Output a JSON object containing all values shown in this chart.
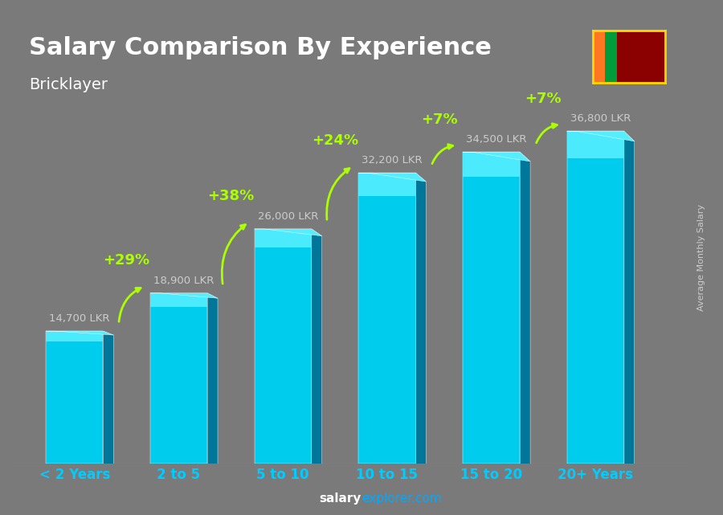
{
  "title": "Salary Comparison By Experience",
  "subtitle": "Bricklayer",
  "categories": [
    "< 2 Years",
    "2 to 5",
    "5 to 10",
    "10 to 15",
    "15 to 20",
    "20+ Years"
  ],
  "values": [
    14700,
    18900,
    26000,
    32200,
    34500,
    36800
  ],
  "bar_color_top": "#00d4f5",
  "bar_color_mid": "#00aacc",
  "bar_color_side": "#007a99",
  "labels": [
    "14,700 LKR",
    "18,900 LKR",
    "26,000 LKR",
    "32,200 LKR",
    "34,500 LKR",
    "36,800 LKR"
  ],
  "pct_labels": [
    "+29%",
    "+38%",
    "+24%",
    "+7%",
    "+7%"
  ],
  "ylabel_side": "Average Monthly Salary",
  "footer": "salaryexplorer.com",
  "bg_color": "#1a1a2e",
  "title_color": "#ffffff",
  "subtitle_color": "#ffffff",
  "label_color": "#cccccc",
  "pct_color": "#aaff00",
  "arrow_color": "#aaff00",
  "footer_salary_color": "#ffffff",
  "footer_site_color": "#00aaff"
}
